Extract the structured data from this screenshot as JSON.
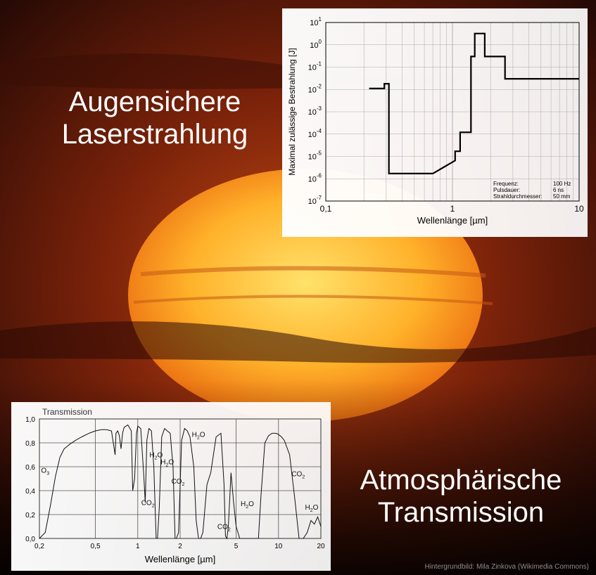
{
  "headings": {
    "top_line1": "Augensichere",
    "top_line2": "Laserstrahlung",
    "bottom_line1": "Atmosphärische",
    "bottom_line2": "Transmission"
  },
  "credit": "Hintergrundbild: Mila Zinkova (Wikimedia Commons)",
  "colors": {
    "sky_dark": "#1a0604",
    "sky_glow": "#c44a12",
    "sun_core": "#ffd24a",
    "sun_edge": "#f07a10",
    "line": "#000000",
    "grid": "#a9a9a9"
  },
  "chart_data": [
    {
      "type": "line",
      "xlabel": "Wellenlänge [µm]",
      "ylabel": "Maximal zulässige Bestrahlung [J]",
      "xscale": "log",
      "yscale": "log",
      "xlim": [
        0.1,
        10
      ],
      "ylim": [
        1e-07,
        10
      ],
      "x_ticks": [
        {
          "value": 0.1,
          "label": "0,1"
        },
        {
          "value": 1,
          "label": "1"
        },
        {
          "value": 10,
          "label": "10"
        }
      ],
      "y_ticks": [
        {
          "value": 1e-07,
          "base": "10",
          "exp": "-7"
        },
        {
          "value": 1e-06,
          "base": "10",
          "exp": "-6"
        },
        {
          "value": 1e-05,
          "base": "10",
          "exp": "-5"
        },
        {
          "value": 0.0001,
          "base": "10",
          "exp": "-4"
        },
        {
          "value": 0.001,
          "base": "10",
          "exp": "-3"
        },
        {
          "value": 0.01,
          "base": "10",
          "exp": "-2"
        },
        {
          "value": 0.1,
          "base": "10",
          "exp": "-1"
        },
        {
          "value": 1,
          "base": "10",
          "exp": "0"
        },
        {
          "value": 10,
          "base": "10",
          "exp": "1"
        }
      ],
      "grid": true,
      "parameters": [
        {
          "name": "Frequenz:",
          "value": "100 Hz"
        },
        {
          "name": "Pulsdauer:",
          "value": "6 ns"
        },
        {
          "name": "Strahldurchmesser:",
          "value": "50 mm"
        }
      ],
      "series": [
        {
          "x": [
            0.22,
            0.29,
            0.29,
            0.315,
            0.315,
            0.4,
            0.4,
            0.7,
            0.7,
            1.05,
            1.05,
            1.15,
            1.15,
            1.4,
            1.4,
            1.5,
            1.5,
            1.8,
            1.8,
            2.6,
            2.6,
            10
          ],
          "y": [
            0.011,
            0.011,
            0.018,
            0.018,
            1.7e-06,
            1.7e-06,
            1.7e-06,
            1.7e-06,
            1.7e-06,
            6.5e-06,
            1.7e-05,
            1.7e-05,
            0.00012,
            0.00012,
            0.3,
            0.3,
            3.2,
            3.2,
            0.3,
            0.3,
            0.03,
            0.03
          ]
        }
      ]
    },
    {
      "type": "line",
      "title": "Transmission",
      "xlabel": "Wellenlänge [µm]",
      "xscale": "log",
      "xlim": [
        0.2,
        20
      ],
      "ylim": [
        0,
        1
      ],
      "x_ticks": [
        {
          "value": 0.2,
          "label": "0,2"
        },
        {
          "value": 0.5,
          "label": "0,5"
        },
        {
          "value": 1,
          "label": "1"
        },
        {
          "value": 2,
          "label": "2"
        },
        {
          "value": 5,
          "label": "5"
        },
        {
          "value": 10,
          "label": "10"
        },
        {
          "value": 20,
          "label": "20"
        }
      ],
      "y_ticks": [
        {
          "value": 0,
          "label": "0,0"
        },
        {
          "value": 0.2,
          "label": "0,2"
        },
        {
          "value": 0.4,
          "label": "0,4"
        },
        {
          "value": 0.6,
          "label": "0,6"
        },
        {
          "value": 0.8,
          "label": "0,8"
        },
        {
          "value": 1.0,
          "label": "1,0"
        }
      ],
      "grid": true,
      "annotations": [
        {
          "text": "O",
          "sub": "3",
          "x": 0.22,
          "y": 0.55
        },
        {
          "text": "H",
          "sub": "2",
          "tail": "O",
          "x": 1.35,
          "y": 0.68
        },
        {
          "text": "H",
          "sub": "2",
          "tail": "O",
          "x": 1.62,
          "y": 0.62
        },
        {
          "text": "H",
          "sub": "2",
          "tail": "O",
          "x": 2.7,
          "y": 0.85
        },
        {
          "text": "CO",
          "sub": "2",
          "x": 1.18,
          "y": 0.28
        },
        {
          "text": "CO",
          "sub": "2",
          "x": 1.93,
          "y": 0.46
        },
        {
          "text": "CO",
          "sub": "2",
          "x": 4.1,
          "y": 0.08
        },
        {
          "text": "H",
          "sub": "2",
          "tail": "O",
          "x": 6.0,
          "y": 0.27
        },
        {
          "text": "CO",
          "sub": "2",
          "x": 13.8,
          "y": 0.52
        },
        {
          "text": "H",
          "sub": "2",
          "tail": "O",
          "x": 17.2,
          "y": 0.24
        }
      ],
      "series": [
        {
          "x": [
            0.2,
            0.22,
            0.24,
            0.26,
            0.28,
            0.3,
            0.33,
            0.36,
            0.4,
            0.45,
            0.5,
            0.55,
            0.6,
            0.65,
            0.69,
            0.7,
            0.72,
            0.74,
            0.76,
            0.78,
            0.8,
            0.85,
            0.9,
            0.92,
            0.95,
            0.98,
            1.0,
            1.05,
            1.1,
            1.13,
            1.16,
            1.2,
            1.25,
            1.3,
            1.35,
            1.38,
            1.42,
            1.48,
            1.55,
            1.62,
            1.7,
            1.78,
            1.84,
            1.88,
            1.95,
            2.05,
            2.15,
            2.25,
            2.35,
            2.5,
            2.6,
            2.7,
            2.8,
            2.9,
            3.1,
            3.3,
            3.6,
            3.9,
            4.1,
            4.2,
            4.3,
            4.4,
            4.6,
            4.8,
            5.0,
            5.3,
            5.7,
            6.2,
            6.7,
            7.2,
            7.5,
            8.0,
            8.5,
            9.0,
            9.6,
            10.0,
            10.5,
            11.0,
            12.0,
            13.0,
            14.0,
            15.0,
            16.0,
            17.0,
            18.0,
            19.0,
            20.0
          ],
          "y": [
            0.0,
            0.05,
            0.28,
            0.52,
            0.68,
            0.75,
            0.79,
            0.82,
            0.85,
            0.88,
            0.9,
            0.91,
            0.91,
            0.9,
            0.7,
            0.88,
            0.9,
            0.86,
            0.75,
            0.88,
            0.93,
            0.95,
            0.9,
            0.4,
            0.5,
            0.88,
            0.94,
            0.92,
            0.55,
            0.3,
            0.82,
            0.92,
            0.9,
            0.6,
            0.0,
            0.0,
            0.25,
            0.85,
            0.92,
            0.9,
            0.88,
            0.6,
            0.0,
            0.0,
            0.05,
            0.82,
            0.92,
            0.9,
            0.85,
            0.6,
            0.15,
            0.0,
            0.0,
            0.05,
            0.45,
            0.55,
            0.85,
            0.88,
            0.45,
            0.02,
            0.0,
            0.1,
            0.55,
            0.3,
            0.1,
            0.0,
            0.0,
            0.0,
            0.0,
            0.0,
            0.35,
            0.8,
            0.86,
            0.88,
            0.88,
            0.87,
            0.85,
            0.82,
            0.7,
            0.35,
            0.0,
            0.0,
            0.05,
            0.15,
            0.12,
            0.18,
            0.1
          ]
        }
      ]
    }
  ]
}
